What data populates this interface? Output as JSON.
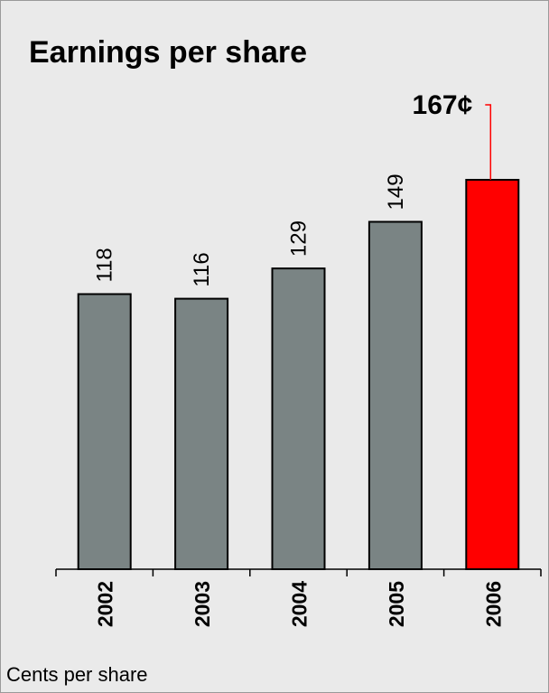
{
  "chart_data": {
    "type": "bar",
    "title": "Earnings per share",
    "footnote": "Cents per share",
    "categories": [
      "2002",
      "2003",
      "2004",
      "2005",
      "2006"
    ],
    "values": [
      118,
      116,
      129,
      149,
      167
    ],
    "data_labels": [
      "118",
      "116",
      "129",
      "149",
      "167¢"
    ],
    "highlight_index": 4,
    "ylim": [
      0,
      167
    ],
    "grid": false,
    "legend": "none",
    "colors": {
      "bar": "#7a8484",
      "highlight": "#ff0000",
      "highlight_line": "#ff0000",
      "background": "#eaeaea"
    }
  }
}
